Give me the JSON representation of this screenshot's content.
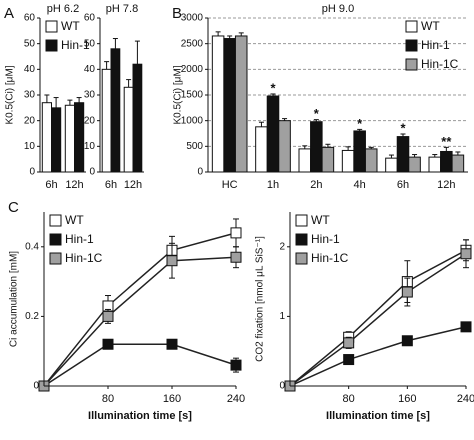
{
  "chart_data": [
    {
      "type": "bar",
      "panel": "A",
      "title": "pH 6.2",
      "ylabel": "K0.5(Ci) [μM]",
      "categories": [
        "6h",
        "12h"
      ],
      "series": [
        {
          "name": "WT",
          "color": "#ffffff",
          "values": [
            27,
            26
          ],
          "errors": [
            3,
            2
          ]
        },
        {
          "name": "Hin-1",
          "color": "#111111",
          "values": [
            25,
            27
          ],
          "errors": [
            4,
            2
          ]
        }
      ],
      "ylim": [
        0,
        60
      ],
      "yticks": [
        0,
        10,
        20,
        30,
        40,
        50,
        60
      ],
      "grid": false,
      "legend": "upper left"
    },
    {
      "type": "bar",
      "title": "pH 7.8",
      "categories": [
        "6h",
        "12h"
      ],
      "series": [
        {
          "color": "#ffffff",
          "values": [
            40,
            33
          ],
          "errors": [
            3,
            3
          ]
        },
        {
          "color": "#111111",
          "values": [
            48,
            42
          ],
          "errors": [
            4,
            9
          ]
        }
      ],
      "ylim": [
        0,
        60
      ],
      "yticks": [
        0,
        10,
        20,
        30,
        40,
        50,
        60
      ],
      "grid": false
    },
    {
      "type": "bar",
      "panel": "B",
      "title": "pH 9.0",
      "ylabel": "K0.5(Ci) [μM]",
      "categories": [
        "HC",
        "1h",
        "2h",
        "4h",
        "6h",
        "12h"
      ],
      "series": [
        {
          "name": "WT",
          "color": "#ffffff",
          "values": [
            2650,
            880,
            450,
            420,
            270,
            290
          ],
          "errors": [
            80,
            90,
            60,
            70,
            60,
            50
          ]
        },
        {
          "name": "Hin-1",
          "color": "#111111",
          "values": [
            2600,
            1480,
            980,
            800,
            690,
            400
          ],
          "errors": [
            50,
            40,
            40,
            30,
            50,
            80
          ]
        },
        {
          "name": "Hin-1C",
          "color": "#a0a0a0",
          "values": [
            2650,
            1000,
            480,
            450,
            290,
            330
          ],
          "errors": [
            60,
            40,
            60,
            30,
            50,
            60
          ]
        }
      ],
      "significance": [
        null,
        "*",
        "*",
        "*",
        "*",
        "**"
      ],
      "ylim": [
        0,
        3000
      ],
      "yticks": [
        0,
        500,
        1000,
        1500,
        2000,
        2500,
        3000
      ],
      "grid": true,
      "legend": "upper right"
    },
    {
      "type": "line",
      "panel": "C",
      "xlabel": "Illumination time [s]",
      "ylabel": "Ci accumulation [mM]",
      "x": [
        0,
        80,
        160,
        240
      ],
      "series": [
        {
          "name": "WT",
          "color": "#ffffff",
          "values": [
            0,
            0.23,
            0.39,
            0.44
          ],
          "errors": [
            0,
            0.03,
            0.04,
            0.04
          ]
        },
        {
          "name": "Hin-1",
          "color": "#111111",
          "values": [
            0,
            0.12,
            0.12,
            0.06
          ],
          "errors": [
            0,
            0.01,
            0.01,
            0.02
          ]
        },
        {
          "name": "Hin-1C",
          "color": "#a0a0a0",
          "values": [
            0,
            0.2,
            0.36,
            0.37
          ],
          "errors": [
            0,
            0.02,
            0.05,
            0.03
          ]
        }
      ],
      "xlim": [
        0,
        240
      ],
      "xticks": [
        80,
        160,
        240
      ],
      "ylim": [
        0,
        0.5
      ],
      "yticks": [
        0,
        0.2,
        0.4
      ],
      "legend": "upper left"
    },
    {
      "type": "line",
      "xlabel": "Illumination time [s]",
      "ylabel": "CO2 fixation [nmol μL SiS⁻¹]",
      "x": [
        0,
        80,
        160,
        240
      ],
      "series": [
        {
          "name": "WT",
          "color": "#ffffff",
          "values": [
            0,
            0.7,
            1.5,
            1.95
          ],
          "errors": [
            0,
            0.08,
            0.3,
            0.15
          ]
        },
        {
          "name": "Hin-1",
          "color": "#111111",
          "values": [
            0,
            0.38,
            0.65,
            0.85
          ],
          "errors": [
            0,
            0.03,
            0.04,
            0.03
          ]
        },
        {
          "name": "Hin-1C",
          "color": "#a0a0a0",
          "values": [
            0,
            0.62,
            1.35,
            1.9
          ],
          "errors": [
            0,
            0.08,
            0.2,
            0.2
          ]
        }
      ],
      "xlim": [
        0,
        240
      ],
      "xticks": [
        80,
        160,
        240
      ],
      "ylim": [
        0,
        2.5
      ],
      "yticks": [
        0,
        1,
        2
      ],
      "legend": "upper left"
    }
  ]
}
